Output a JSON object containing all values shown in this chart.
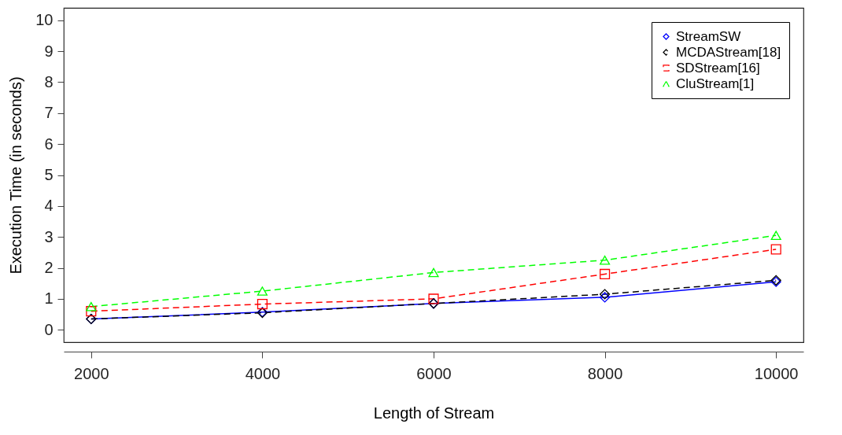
{
  "chart_data": {
    "type": "line",
    "xlabel": "Length of Stream",
    "ylabel": "Execution Time (in seconds)",
    "x": [
      2000,
      4000,
      6000,
      8000,
      10000
    ],
    "xlim": [
      1680,
      10320
    ],
    "xticks": [
      2000,
      4000,
      6000,
      8000,
      10000
    ],
    "ylim": [
      -0.4,
      10.4
    ],
    "yticks": [
      0,
      1,
      2,
      3,
      4,
      5,
      6,
      7,
      8,
      9,
      10
    ],
    "grid": false,
    "legend": "top right",
    "series": [
      {
        "name": "StreamSW",
        "color": "#0000ff",
        "marker": "diamond",
        "line_style": "solid",
        "values": [
          0.35,
          0.57,
          0.85,
          1.05,
          1.55
        ]
      },
      {
        "name": "MCDAStream[18]",
        "color": "#000000",
        "marker": "diamond",
        "line_style": "dashed",
        "values": [
          0.35,
          0.55,
          0.85,
          1.15,
          1.6
        ]
      },
      {
        "name": "SDStream[16]",
        "color": "#ff0000",
        "marker": "square",
        "line_style": "dashed",
        "values": [
          0.6,
          0.83,
          1.0,
          1.8,
          2.6
        ]
      },
      {
        "name": "CluStream[1]",
        "color": "#00ff00",
        "marker": "triangle",
        "line_style": "dashed",
        "values": [
          0.75,
          1.25,
          1.85,
          2.25,
          3.05
        ]
      }
    ]
  }
}
